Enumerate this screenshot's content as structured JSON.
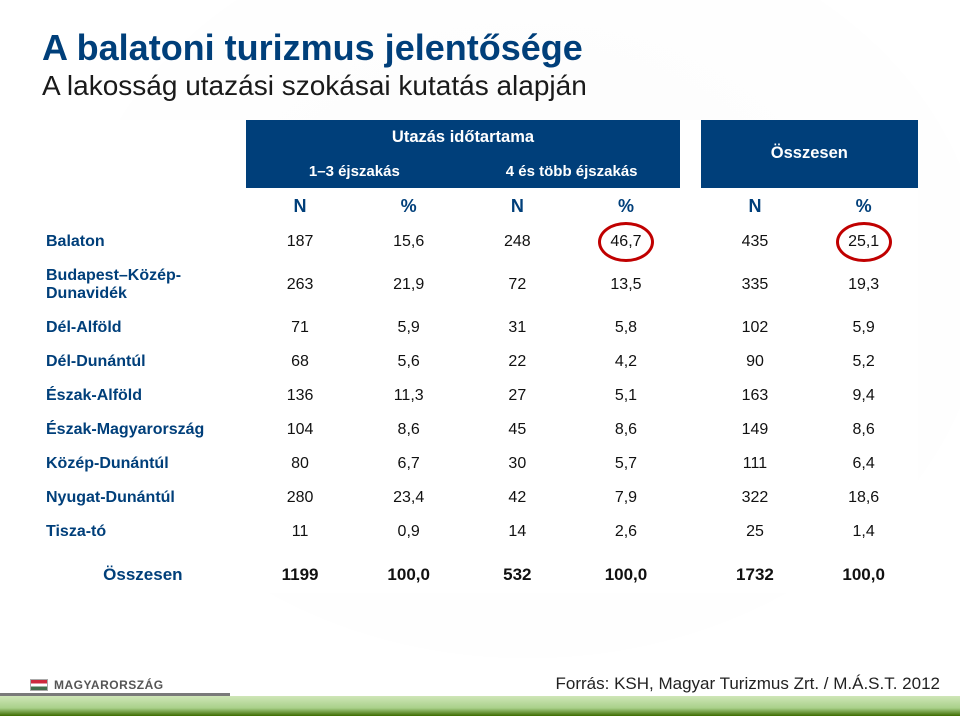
{
  "title": "A balatoni turizmus jelentősége",
  "subtitle": "A lakosság utazási szokásai kutatás alapján",
  "header": {
    "group_duration": "Utazás időtartama",
    "group_total": "Összesen",
    "sub_left": "1–3 éjszakás",
    "sub_right": "4 és több éjszakás",
    "col_N": "N",
    "col_pct": "%"
  },
  "highlight_color": "#c00000",
  "header_bg": "#003f7a",
  "header_fg": "#ffffff",
  "rows": [
    {
      "label": "Balaton",
      "n1": "187",
      "p1": "15,6",
      "n2": "248",
      "p2": "46,7",
      "nT": "435",
      "pT": "25,1",
      "circle_p2": true,
      "circle_pT": true
    },
    {
      "label": "Budapest–Közép-Dunavidék",
      "n1": "263",
      "p1": "21,9",
      "n2": "72",
      "p2": "13,5",
      "nT": "335",
      "pT": "19,3"
    },
    {
      "label": "Dél-Alföld",
      "n1": "71",
      "p1": "5,9",
      "n2": "31",
      "p2": "5,8",
      "nT": "102",
      "pT": "5,9"
    },
    {
      "label": "Dél-Dunántúl",
      "n1": "68",
      "p1": "5,6",
      "n2": "22",
      "p2": "4,2",
      "nT": "90",
      "pT": "5,2"
    },
    {
      "label": "Észak-Alföld",
      "n1": "136",
      "p1": "11,3",
      "n2": "27",
      "p2": "5,1",
      "nT": "163",
      "pT": "9,4"
    },
    {
      "label": "Észak-Magyarország",
      "n1": "104",
      "p1": "8,6",
      "n2": "45",
      "p2": "8,6",
      "nT": "149",
      "pT": "8,6"
    },
    {
      "label": "Közép-Dunántúl",
      "n1": "80",
      "p1": "6,7",
      "n2": "30",
      "p2": "5,7",
      "nT": "111",
      "pT": "6,4"
    },
    {
      "label": "Nyugat-Dunántúl",
      "n1": "280",
      "p1": "23,4",
      "n2": "42",
      "p2": "7,9",
      "nT": "322",
      "pT": "18,6"
    },
    {
      "label": "Tisza-tó",
      "n1": "11",
      "p1": "0,9",
      "n2": "14",
      "p2": "2,6",
      "nT": "25",
      "pT": "1,4"
    }
  ],
  "totals": {
    "label": "Összesen",
    "n1": "1199",
    "p1": "100,0",
    "n2": "532",
    "p2": "100,0",
    "nT": "1732",
    "pT": "100,0"
  },
  "footer": {
    "logo_text": "MAGYARORSZÁG",
    "source": "Forrás: KSH, Magyar Turizmus Zrt. / M.Á.S.T. 2012"
  }
}
